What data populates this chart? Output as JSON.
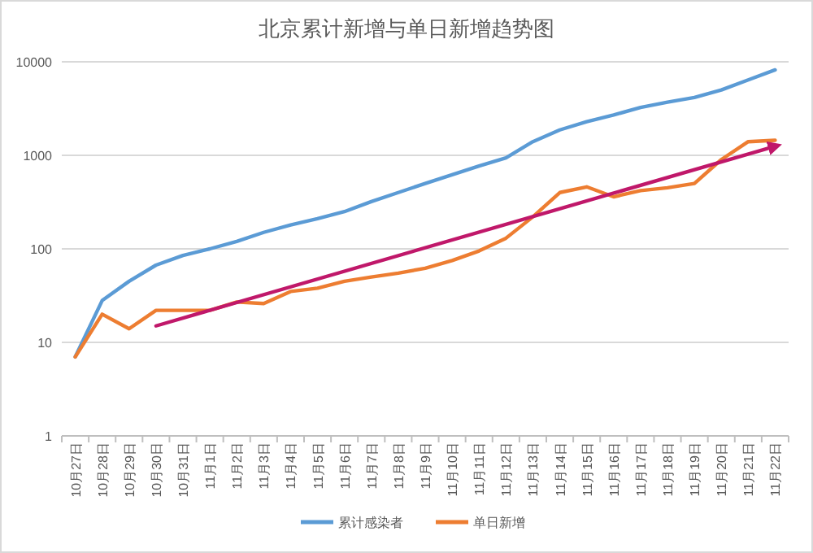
{
  "chart_data": {
    "type": "line",
    "title": "北京累计新增与单日新增趋势图",
    "categories": [
      "10月27日",
      "10月28日",
      "10月29日",
      "10月30日",
      "10月31日",
      "11月1日",
      "11月2日",
      "11月3日",
      "11月4日",
      "11月5日",
      "11月6日",
      "11月7日",
      "11月8日",
      "11月9日",
      "11月10日",
      "11月11日",
      "11月12日",
      "11月13日",
      "11月14日",
      "11月15日",
      "11月16日",
      "11月17日",
      "11月18日",
      "11月19日",
      "11月20日",
      "11月21日",
      "11月22日"
    ],
    "series": [
      {
        "name": "累计感染者",
        "color": "#5b9bd5",
        "values": [
          7,
          28,
          45,
          67,
          85,
          100,
          120,
          150,
          180,
          210,
          250,
          320,
          400,
          500,
          620,
          770,
          940,
          1400,
          1870,
          2290,
          2700,
          3250,
          3700,
          4150,
          5000,
          6400,
          8200
        ]
      },
      {
        "name": "单日新增",
        "color": "#ed7d31",
        "values": [
          7,
          20,
          14,
          22,
          22,
          22,
          27,
          26,
          35,
          38,
          45,
          50,
          55,
          62,
          75,
          95,
          130,
          220,
          400,
          460,
          360,
          420,
          450,
          500,
          900,
          1400,
          1450
        ]
      },
      {
        "type": "line",
        "color": "#c0186a",
        "x": [
          "10月30日",
          "11月22日"
        ],
        "values": [
          15,
          1250
        ]
      }
    ],
    "log": true,
    "ylim": [
      1,
      10000
    ],
    "yticks": [
      1,
      10,
      100,
      1000,
      10000
    ],
    "grid": "y",
    "legend": "bottom",
    "marker": "none",
    "line_style": "solid"
  }
}
